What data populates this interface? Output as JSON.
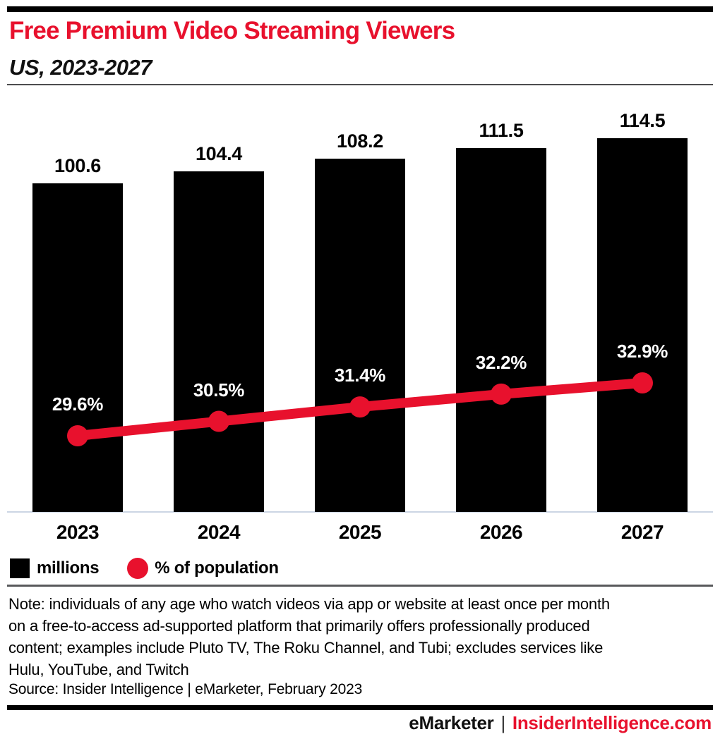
{
  "header": {
    "title": "Free Premium Video Streaming Viewers",
    "subtitle": "US, 2023-2027"
  },
  "chart_data": {
    "type": "bar",
    "subtype": "bar-line-combo",
    "title": "Free Premium Video Streaming Viewers",
    "subtitle": "US, 2023-2027",
    "categories": [
      "2023",
      "2024",
      "2025",
      "2026",
      "2027"
    ],
    "series": [
      {
        "name": "millions",
        "type": "bar",
        "color": "#000000",
        "values": [
          100.6,
          104.4,
          108.2,
          111.5,
          114.5
        ],
        "labels": [
          "100.6",
          "104.4",
          "108.2",
          "111.5",
          "114.5"
        ]
      },
      {
        "name": "% of population",
        "type": "line",
        "color": "#e8112d",
        "values": [
          29.6,
          30.5,
          31.4,
          32.2,
          32.9
        ],
        "labels": [
          "29.6%",
          "30.5%",
          "31.4%",
          "32.2%",
          "32.9%"
        ]
      }
    ],
    "xlabel": "",
    "ylabel": "",
    "bar_ylim": [
      0,
      114.5
    ],
    "line_ylim": [
      29.6,
      32.9
    ],
    "grid": false,
    "axes_shown": false,
    "value_labels_shown": true,
    "legend_position": "bottom-left"
  },
  "legend": {
    "items": [
      {
        "label": "millions",
        "swatch": "black-square"
      },
      {
        "label": "% of population",
        "swatch": "red-circle"
      }
    ]
  },
  "footnotes": {
    "note": "Note: individuals of any age who watch videos via app or website at least once per month\non a free-to-access ad-supported platform that primarily offers professionally produced\ncontent; examples include Pluto TV, The Roku Channel, and Tubi; excludes services like\nHulu, YouTube, and Twitch",
    "source": "Source: Insider Intelligence | eMarketer, February 2023"
  },
  "footer": {
    "brand_left": "eMarketer",
    "separator": "|",
    "brand_right": "InsiderIntelligence.com"
  },
  "colors": {
    "accent_red": "#e8112d",
    "bar_black": "#000000",
    "baseline_gray": "#ccd6e4",
    "divider_gray": "#58595b"
  }
}
